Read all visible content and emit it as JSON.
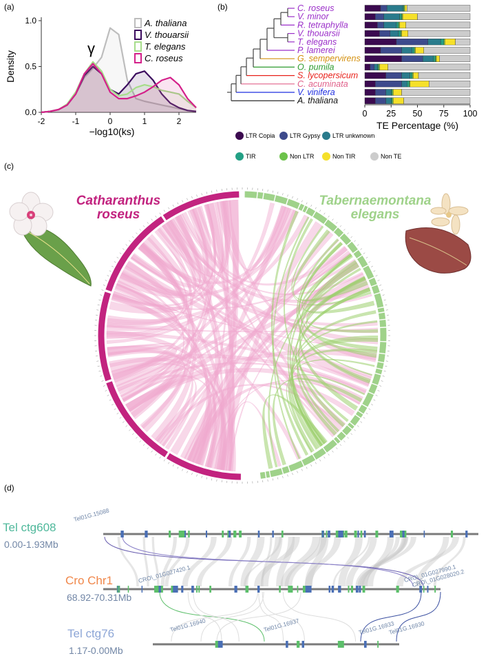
{
  "chart_data": [
    {
      "type": "line",
      "panel_label": "(a)",
      "xlabel": "−log10(ks)",
      "ylabel": "Density",
      "annotation": "γ",
      "x": [
        -2,
        -1.75,
        -1.5,
        -1.25,
        -1,
        -0.75,
        -0.5,
        -0.25,
        0,
        0.25,
        0.5,
        0.75,
        1,
        1.25,
        1.5,
        1.75,
        2,
        2.25,
        2.5
      ],
      "xlim": [
        -2,
        2.5
      ],
      "ylim": [
        0,
        1
      ],
      "xticks": [
        -2,
        -1,
        0,
        1,
        2
      ],
      "yticks": [
        {
          "value": 0,
          "label": "0.0"
        },
        {
          "value": 0.5,
          "label": "0.5"
        },
        {
          "value": 1,
          "label": "1.0"
        }
      ],
      "series": [
        {
          "name": "A. thaliana",
          "color": "#bdbdbd",
          "values": [
            0,
            0.01,
            0.03,
            0.08,
            0.2,
            0.38,
            0.48,
            0.6,
            0.92,
            0.85,
            0.35,
            0.15,
            0.12,
            0.1,
            0.08,
            0.06,
            0.04,
            0.02,
            0.01
          ]
        },
        {
          "name": "V. thouarsii",
          "color": "#3b0a5e",
          "values": [
            0,
            0.01,
            0.03,
            0.08,
            0.2,
            0.4,
            0.5,
            0.42,
            0.25,
            0.2,
            0.3,
            0.42,
            0.45,
            0.35,
            0.2,
            0.1,
            0.05,
            0.02,
            0.01
          ]
        },
        {
          "name": "T. elegans",
          "color": "#a6dd8a",
          "values": [
            0,
            0.01,
            0.03,
            0.09,
            0.22,
            0.42,
            0.55,
            0.45,
            0.25,
            0.18,
            0.2,
            0.27,
            0.3,
            0.28,
            0.24,
            0.22,
            0.2,
            0.12,
            0.05
          ]
        },
        {
          "name": "C. roseus",
          "color": "#d4208a",
          "values": [
            0,
            0.01,
            0.03,
            0.08,
            0.2,
            0.42,
            0.53,
            0.42,
            0.22,
            0.15,
            0.15,
            0.18,
            0.22,
            0.28,
            0.35,
            0.38,
            0.3,
            0.15,
            0.05
          ]
        }
      ]
    },
    {
      "type": "bar",
      "orientation": "horizontal",
      "stacked": true,
      "panel_label": "(b)",
      "xlabel": "TE Percentage (%)",
      "categories": [
        "C. roseus",
        "V. minor",
        "R. tetraphylla",
        "V. thouarsii",
        "T. elegans",
        "P. lamerei",
        "G. sempervirens",
        "O. pumila",
        "S. lycopersicum",
        "C. acuminata",
        "V. vinifera",
        "A. thaliana"
      ],
      "category_colors": [
        "#9b2fc9",
        "#9b2fc9",
        "#9b2fc9",
        "#9b2fc9",
        "#9b2fc9",
        "#9b2fc9",
        "#d4900e",
        "#2e9b2e",
        "#e8211a",
        "#e0608a",
        "#1f2ee0",
        "#111111"
      ],
      "xlim": [
        0,
        100
      ],
      "xticks": [
        0,
        25,
        50,
        75,
        100
      ],
      "series": [
        {
          "name": "LTR Copia",
          "color": "#3b0a4f",
          "values": [
            15,
            10,
            12,
            14,
            30,
            15,
            35,
            5,
            20,
            10,
            10,
            10
          ]
        },
        {
          "name": "LTR Gypsy",
          "color": "#3d4a8c",
          "values": [
            6,
            8,
            6,
            10,
            30,
            20,
            20,
            4,
            15,
            25,
            10,
            10
          ]
        },
        {
          "name": "LTR unkwnown",
          "color": "#2a7b8c",
          "values": [
            15,
            15,
            12,
            8,
            12,
            10,
            10,
            3,
            8,
            5,
            5,
            5
          ]
        },
        {
          "name": "TIR",
          "color": "#23a085",
          "values": [
            1,
            2,
            2,
            2,
            3,
            2,
            2,
            1,
            2,
            2,
            1,
            1
          ]
        },
        {
          "name": "Non LTR",
          "color": "#6cc24a",
          "values": [
            1,
            1,
            1,
            1,
            1,
            1,
            1,
            1,
            1,
            1,
            1,
            1
          ]
        },
        {
          "name": "Non TIR",
          "color": "#f5e02a",
          "values": [
            2,
            14,
            6,
            6,
            10,
            8,
            3,
            8,
            5,
            18,
            8,
            10
          ]
        },
        {
          "name": "Non TE",
          "color": "#cccccc",
          "values": [
            60,
            50,
            61,
            59,
            14,
            44,
            29,
            78,
            49,
            39,
            65,
            63
          ]
        }
      ]
    }
  ],
  "circos": {
    "panel_label": "(c)",
    "left_label": [
      "Catharanthus",
      "roseus"
    ],
    "right_label": [
      "Tabernaemontana",
      "elegans"
    ],
    "left_color": "#c2237f",
    "right_color": "#9fd28a"
  },
  "synteny": {
    "panel_label": "(d)",
    "range_color": "#7186a6",
    "tracks": [
      {
        "name": "Tel ctg608",
        "range": "0.00-1.93Mb",
        "color": "#4fb89b"
      },
      {
        "name": "Cro Chr1",
        "range": "68.92-70.31Mb",
        "color": "#f0874a"
      },
      {
        "name": "Tel ctg76",
        "range": "1.17-0.00Mb",
        "color": "#8da6d6"
      }
    ],
    "gene_labels": [
      "Tel01G.15088",
      "CRO\\_01G027420.1",
      "CRO\\_01G027990.1",
      "CRO\\_01G028020.2",
      "Tel01G.16940",
      "Tel01G.16937",
      "Tel01G.16933",
      "Tel01G.16930"
    ]
  }
}
